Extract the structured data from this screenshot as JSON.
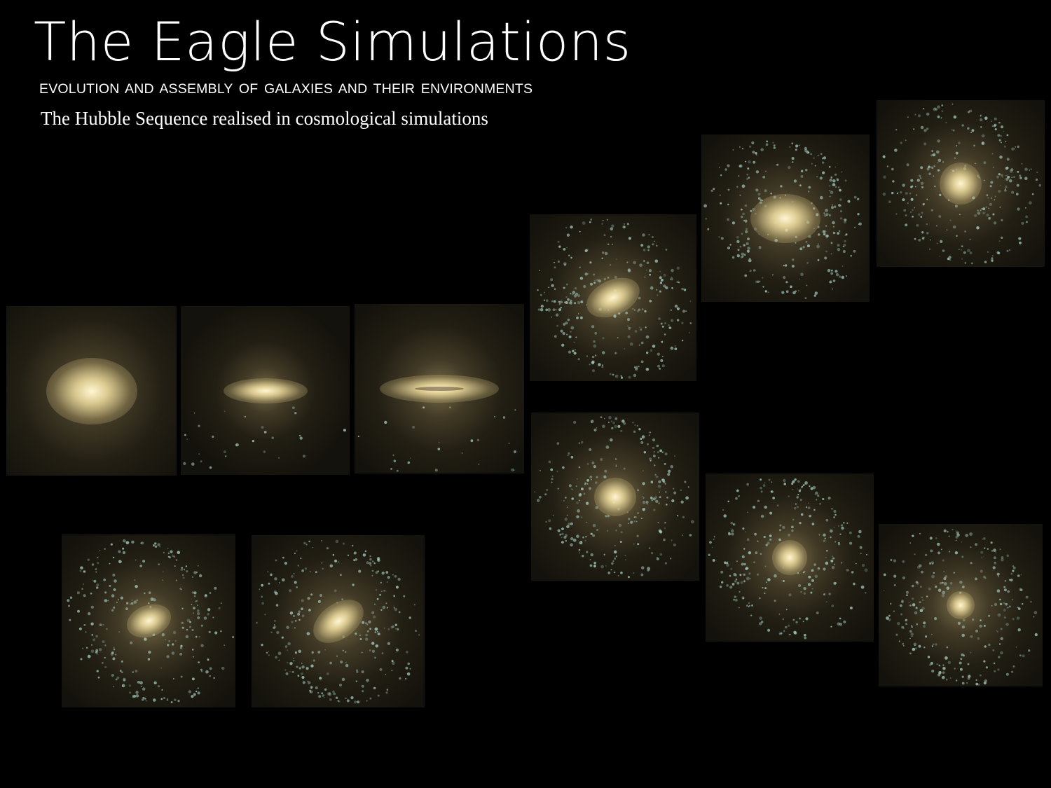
{
  "header": {
    "title": "The Eagle Simulations",
    "subtitle": "EVOLUTION AND ASSEMBLY OF GALAXIES AND THEIR ENVIRONMENTS",
    "tagline": "The Hubble Sequence realised in cosmological simulations"
  },
  "colors": {
    "background": "#000000",
    "galaxy_core": "#fff6d2",
    "galaxy_glow": "#c8b478",
    "young_stars": "#a8cfc4"
  },
  "galaxies": [
    {
      "id": "elliptical-1",
      "morphology": "elliptical"
    },
    {
      "id": "lenticular-1",
      "morphology": "lenticular"
    },
    {
      "id": "edge-on-disc-1",
      "morphology": "edge-on-disc"
    },
    {
      "id": "spiral-1",
      "morphology": "spiral"
    },
    {
      "id": "spiral-2",
      "morphology": "spiral"
    },
    {
      "id": "spiral-3",
      "morphology": "spiral"
    },
    {
      "id": "spiral-4",
      "morphology": "spiral"
    },
    {
      "id": "spiral-5",
      "morphology": "spiral"
    },
    {
      "id": "spiral-6",
      "morphology": "spiral"
    },
    {
      "id": "barred-spiral-1",
      "morphology": "barred-spiral"
    },
    {
      "id": "barred-spiral-2",
      "morphology": "barred-spiral"
    }
  ]
}
